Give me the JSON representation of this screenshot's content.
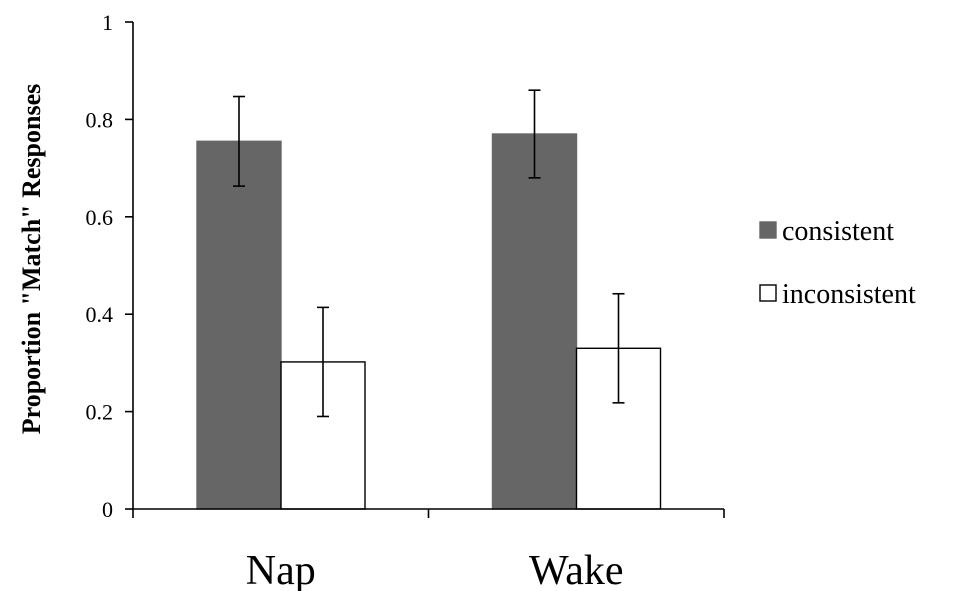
{
  "chart_data": {
    "type": "bar",
    "title": "",
    "xlabel": "",
    "ylabel": "Proportion \"Match\" Responses",
    "ylim": [
      0,
      1
    ],
    "yticks": [
      "0",
      "0.2",
      "0.4",
      "0.6",
      "0.8",
      "1"
    ],
    "categories": [
      "Nap",
      "Wake"
    ],
    "series": [
      {
        "name": "consistent",
        "color": "#666666",
        "values": [
          0.755,
          0.77
        ],
        "error": [
          0.092,
          0.09
        ]
      },
      {
        "name": "inconsistent",
        "color": "#ffffff",
        "values": [
          0.302,
          0.33
        ],
        "error": [
          0.112,
          0.112
        ]
      }
    ],
    "legend_position": "right",
    "grid": false
  }
}
